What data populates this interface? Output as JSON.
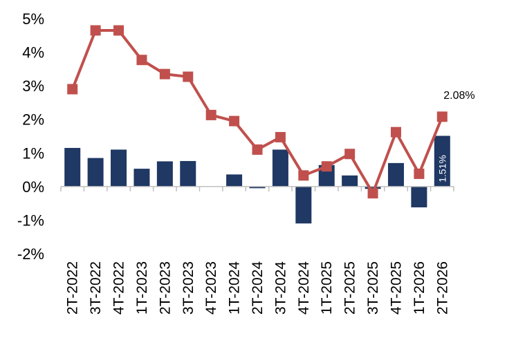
{
  "chart_data": {
    "type": "bar+line",
    "categories": [
      "2T-2022",
      "3T-2022",
      "4T-2022",
      "1T-2023",
      "2T-2023",
      "3T-2023",
      "4T-2023",
      "1T-2024",
      "2T-2024",
      "3T-2024",
      "4T-2024",
      "1T-2025",
      "2T-2025",
      "3T-2025",
      "4T-2025",
      "1T-2026",
      "2T-2026"
    ],
    "series": [
      {
        "kind": "bar",
        "color": "#1f3864",
        "values": [
          1.15,
          0.85,
          1.1,
          0.53,
          0.75,
          0.76,
          0.0,
          0.36,
          -0.05,
          1.1,
          -1.1,
          0.64,
          0.33,
          -0.07,
          0.7,
          -0.62,
          1.51
        ]
      },
      {
        "kind": "line",
        "color": "#c0504d",
        "marker": "square",
        "values": [
          2.9,
          4.65,
          4.65,
          3.77,
          3.35,
          3.27,
          2.13,
          1.95,
          1.1,
          1.47,
          0.33,
          0.6,
          0.97,
          -0.2,
          1.62,
          0.38,
          2.08
        ]
      }
    ],
    "ylim": [
      -2,
      5
    ],
    "yticks": [
      "5%",
      "4%",
      "3%",
      "2%",
      "1%",
      "0%",
      "-1%",
      "-2%"
    ],
    "ytick_values": [
      5,
      4,
      3,
      2,
      1,
      0,
      -1,
      -2
    ],
    "annotations": {
      "line_last": "2.08%",
      "bar_last": "1.51%"
    },
    "grid": false,
    "legend": "none"
  }
}
